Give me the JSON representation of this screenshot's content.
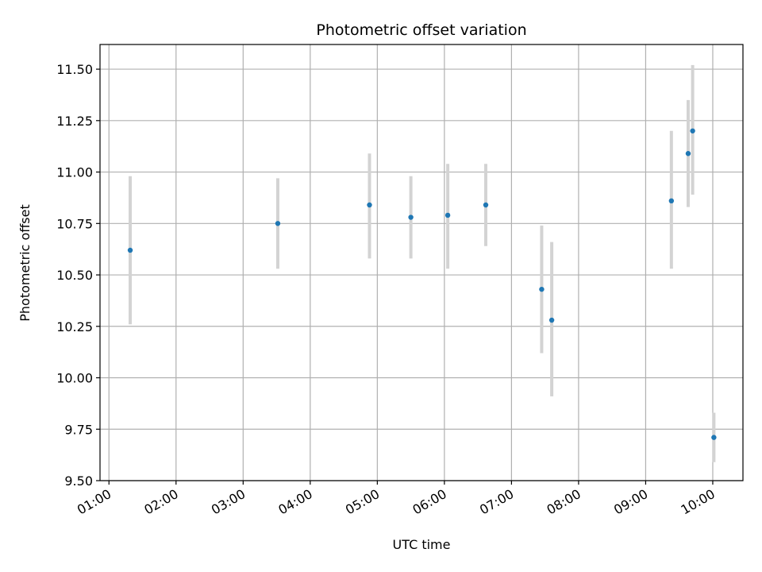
{
  "chart_data": {
    "type": "scatter",
    "title": "Photometric offset variation",
    "xlabel": "UTC time",
    "ylabel": "Photometric offset",
    "x_axis_type": "time",
    "xlim": [
      "00:52",
      "10:27"
    ],
    "ylim": [
      9.5,
      11.62
    ],
    "xticks": [
      "01:00",
      "02:00",
      "03:00",
      "04:00",
      "05:00",
      "06:00",
      "07:00",
      "08:00",
      "09:00",
      "10:00"
    ],
    "yticks": [
      "9.50",
      "9.75",
      "10.00",
      "10.25",
      "10.50",
      "10.75",
      "11.00",
      "11.25",
      "11.50"
    ],
    "grid": true,
    "point_color": "#1f77b4",
    "errorbar_color": "#d3d3d3",
    "series": [
      {
        "points": [
          {
            "x": "01:19",
            "y": 10.62,
            "err_low": 10.26,
            "err_high": 10.98
          },
          {
            "x": "03:31",
            "y": 10.75,
            "err_low": 10.53,
            "err_high": 10.97
          },
          {
            "x": "04:53",
            "y": 10.84,
            "err_low": 10.58,
            "err_high": 11.09
          },
          {
            "x": "05:30",
            "y": 10.78,
            "err_low": 10.58,
            "err_high": 10.98
          },
          {
            "x": "06:03",
            "y": 10.79,
            "err_low": 10.53,
            "err_high": 11.04
          },
          {
            "x": "06:37",
            "y": 10.84,
            "err_low": 10.64,
            "err_high": 11.04
          },
          {
            "x": "07:27",
            "y": 10.43,
            "err_low": 10.12,
            "err_high": 10.74
          },
          {
            "x": "07:36",
            "y": 10.28,
            "err_low": 9.91,
            "err_high": 10.66
          },
          {
            "x": "09:23",
            "y": 10.86,
            "err_low": 10.53,
            "err_high": 11.2
          },
          {
            "x": "09:38",
            "y": 11.09,
            "err_low": 10.83,
            "err_high": 11.35
          },
          {
            "x": "09:42",
            "y": 11.2,
            "err_low": 10.89,
            "err_high": 11.52
          },
          {
            "x": "10:01",
            "y": 9.71,
            "err_low": 9.59,
            "err_high": 9.83
          }
        ]
      }
    ]
  }
}
